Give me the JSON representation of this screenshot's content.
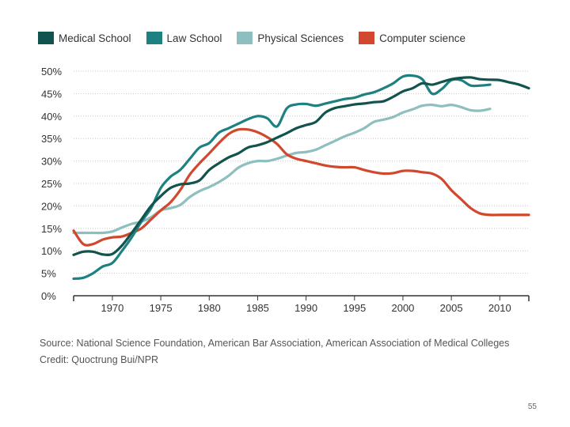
{
  "chart_data": {
    "type": "line",
    "xlim": [
      1966,
      2013
    ],
    "ylim": [
      0,
      50
    ],
    "x_ticks": [
      1970,
      1975,
      1980,
      1985,
      1990,
      1995,
      2000,
      2005,
      2010
    ],
    "y_ticks": [
      "0%",
      "5%",
      "10%",
      "15%",
      "20%",
      "25%",
      "30%",
      "35%",
      "40%",
      "45%",
      "50%"
    ],
    "y_tick_values": [
      0,
      5,
      10,
      15,
      20,
      25,
      30,
      35,
      40,
      45,
      50
    ],
    "grid": "horizontal-dotted",
    "legend": "top",
    "series": [
      {
        "name": "Medical School",
        "color": "#12544d",
        "x": [
          1966,
          1967,
          1968,
          1969,
          1970,
          1971,
          1972,
          1973,
          1974,
          1975,
          1976,
          1977,
          1978,
          1979,
          1980,
          1981,
          1982,
          1983,
          1984,
          1985,
          1986,
          1987,
          1988,
          1989,
          1990,
          1991,
          1992,
          1993,
          1994,
          1995,
          1996,
          1997,
          1998,
          1999,
          2000,
          2001,
          2002,
          2003,
          2004,
          2005,
          2006,
          2007,
          2008,
          2009,
          2010,
          2011,
          2012,
          2013
        ],
        "values": [
          9.1,
          9.8,
          9.8,
          9.2,
          9.3,
          11.2,
          14,
          17,
          20,
          22.2,
          24,
          24.8,
          25,
          25.7,
          28,
          29.5,
          30.8,
          31.7,
          33,
          33.5,
          34.2,
          35.2,
          36.2,
          37.3,
          38,
          38.7,
          40.8,
          41.8,
          42.2,
          42.6,
          42.8,
          43.1,
          43.3,
          44.3,
          45.5,
          46.2,
          47.3,
          47,
          47.6,
          48.2,
          48.5,
          48.6,
          48.2,
          48.1,
          48,
          47.5,
          47,
          46.2
        ]
      },
      {
        "name": "Law School",
        "color": "#1d8181",
        "x": [
          1966,
          1967,
          1968,
          1969,
          1970,
          1971,
          1972,
          1973,
          1974,
          1975,
          1976,
          1977,
          1978,
          1979,
          1980,
          1981,
          1982,
          1983,
          1984,
          1985,
          1986,
          1987,
          1988,
          1989,
          1990,
          1991,
          1992,
          1993,
          1994,
          1995,
          1996,
          1997,
          1998,
          1999,
          2000,
          2001,
          2002,
          2003,
          2004,
          2005,
          2006,
          2007,
          2008,
          2009
        ],
        "values": [
          3.8,
          4,
          5,
          6.5,
          7.3,
          10,
          13,
          16.5,
          19.5,
          24,
          26.5,
          28,
          30.5,
          33,
          34,
          36.3,
          37.3,
          38.3,
          39.3,
          40,
          39.5,
          37.7,
          41.7,
          42.6,
          42.7,
          42.3,
          42.8,
          43.3,
          43.8,
          44.1,
          44.8,
          45.3,
          46.2,
          47.3,
          48.8,
          49,
          48.2,
          45,
          46,
          48,
          48,
          46.8,
          46.8,
          47
        ]
      },
      {
        "name": "Physical Sciences",
        "color": "#8ebfbf",
        "x": [
          1966,
          1967,
          1968,
          1969,
          1970,
          1971,
          1972,
          1973,
          1974,
          1975,
          1976,
          1977,
          1978,
          1979,
          1980,
          1981,
          1982,
          1983,
          1984,
          1985,
          1986,
          1987,
          1988,
          1989,
          1990,
          1991,
          1992,
          1993,
          1994,
          1995,
          1996,
          1997,
          1998,
          1999,
          2000,
          2001,
          2002,
          2003,
          2004,
          2005,
          2006,
          2007,
          2008,
          2009
        ],
        "values": [
          14,
          14,
          14,
          14,
          14.3,
          15.2,
          16,
          16.5,
          17.5,
          19,
          19.5,
          20.2,
          22,
          23.3,
          24.2,
          25.3,
          26.7,
          28.5,
          29.5,
          30,
          30,
          30.5,
          31.2,
          31.8,
          32,
          32.5,
          33.5,
          34.5,
          35.5,
          36.3,
          37.3,
          38.7,
          39.2,
          39.8,
          40.8,
          41.5,
          42.3,
          42.5,
          42.2,
          42.5,
          42,
          41.3,
          41.2,
          41.6
        ]
      },
      {
        "name": "Computer science",
        "color": "#d2482e",
        "x": [
          1966,
          1967,
          1968,
          1969,
          1970,
          1971,
          1972,
          1973,
          1974,
          1975,
          1976,
          1977,
          1978,
          1979,
          1980,
          1981,
          1982,
          1983,
          1984,
          1985,
          1986,
          1987,
          1988,
          1989,
          1990,
          1991,
          1992,
          1993,
          1994,
          1995,
          1996,
          1997,
          1998,
          1999,
          2000,
          2001,
          2002,
          2003,
          2004,
          2005,
          2006,
          2007,
          2008,
          2009,
          2010,
          2011,
          2012,
          2013
        ],
        "values": [
          14.5,
          11.5,
          11.5,
          12.5,
          13,
          13.2,
          14,
          15,
          17,
          19,
          20.8,
          23.5,
          27,
          29.5,
          31.7,
          34,
          36,
          37,
          37,
          36.4,
          35.3,
          33.8,
          31.5,
          30.5,
          30,
          29.5,
          29,
          28.7,
          28.6,
          28.6,
          28,
          27.5,
          27.2,
          27.3,
          27.8,
          27.8,
          27.5,
          27.2,
          26,
          23.5,
          21.5,
          19.5,
          18.3,
          18,
          18,
          18,
          18,
          18
        ]
      }
    ]
  },
  "footer": {
    "source": "Source: National Science Foundation, American Bar Association, American Association of Medical Colleges",
    "credit": "Credit: Quoctrung Bui/NPR"
  },
  "page_number": "55"
}
